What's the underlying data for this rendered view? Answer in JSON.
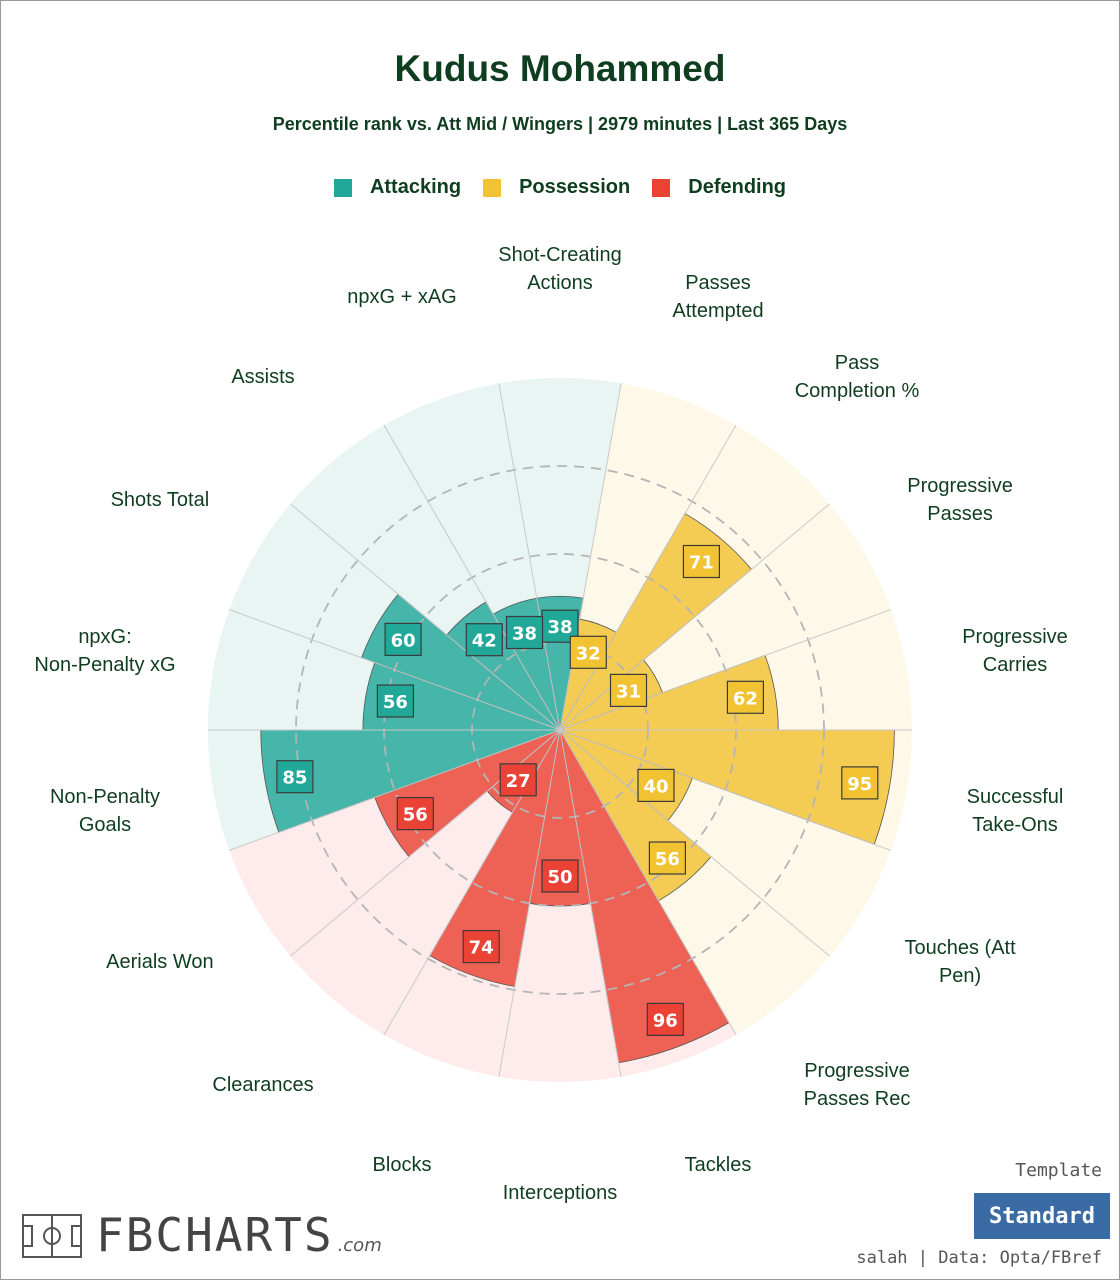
{
  "header": {
    "title": "Kudus Mohammed",
    "subtitle": "Percentile rank vs. Att Mid / Wingers | 2979 minutes | Last 365 Days"
  },
  "legend": [
    {
      "label": "Attacking",
      "color": "#21a899"
    },
    {
      "label": "Possession",
      "color": "#f1c232"
    },
    {
      "label": "Defending",
      "color": "#ea4335"
    }
  ],
  "chart_data": {
    "type": "polar-bar",
    "title": "Kudus Mohammed",
    "subtitle": "Percentile rank vs. Att Mid / Wingers | 2979 minutes | Last 365 Days",
    "rlim": [
      0,
      100
    ],
    "series": [
      {
        "name": "Attacking",
        "color": "#21a899",
        "bg": "#e8f5f3"
      },
      {
        "name": "Possession",
        "color": "#f1c232",
        "bg": "#fdf8e8"
      },
      {
        "name": "Defending",
        "color": "#ea4335",
        "bg": "#fdeceb"
      }
    ],
    "categories": [
      {
        "label": "Shot-Creating Actions",
        "value": 38,
        "group": "Attacking"
      },
      {
        "label": "Passes Attempted",
        "value": 32,
        "group": "Possession"
      },
      {
        "label": "Pass Completion %",
        "value": 71,
        "group": "Possession"
      },
      {
        "label": "Progressive Passes",
        "value": 31,
        "group": "Possession"
      },
      {
        "label": "Progressive Carries",
        "value": 62,
        "group": "Possession"
      },
      {
        "label": "Successful Take-Ons",
        "value": 95,
        "group": "Possession"
      },
      {
        "label": "Touches (Att Pen)",
        "value": 40,
        "group": "Possession"
      },
      {
        "label": "Progressive Passes Rec",
        "value": 56,
        "group": "Possession"
      },
      {
        "label": "Tackles",
        "value": 96,
        "group": "Defending"
      },
      {
        "label": "Interceptions",
        "value": 50,
        "group": "Defending"
      },
      {
        "label": "Blocks",
        "value": 74,
        "group": "Defending"
      },
      {
        "label": "Clearances",
        "value": 27,
        "group": "Defending"
      },
      {
        "label": "Aerials Won",
        "value": 56,
        "group": "Defending"
      },
      {
        "label": "Non-Penalty Goals",
        "value": 85,
        "group": "Attacking"
      },
      {
        "label": "npxG: Non-Penalty xG",
        "value": 56,
        "group": "Attacking"
      },
      {
        "label": "Shots Total",
        "value": 60,
        "group": "Attacking"
      },
      {
        "label": "Assists",
        "value": 42,
        "group": "Attacking"
      },
      {
        "label": "npxG + xAG",
        "value": 38,
        "group": "Attacking"
      }
    ]
  },
  "footer": {
    "template_label": "Template",
    "template_button": "Standard",
    "credit": "salah | Data: Opta/FBref",
    "brand": "FBCHARTS",
    "brand_suffix": ".com"
  }
}
